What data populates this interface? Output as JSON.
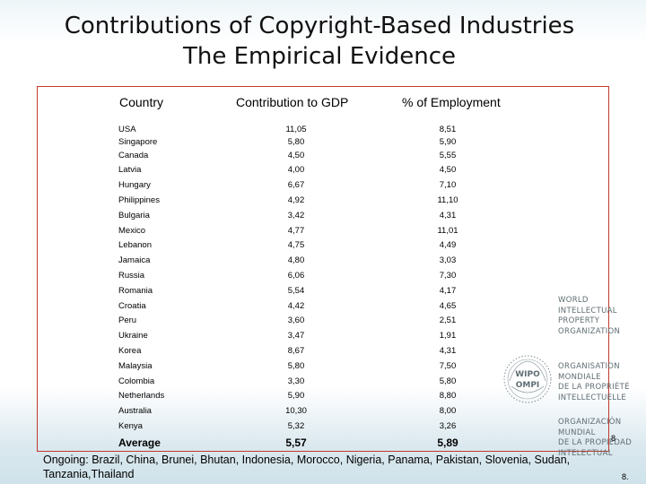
{
  "title": {
    "line1": "Contributions of Copyright-Based Industries",
    "line2": "The Empirical Evidence"
  },
  "table": {
    "headers": {
      "country": "Country",
      "gdp": "Contribution to GDP",
      "employment": "% of Employment"
    },
    "rows": [
      {
        "country": "USA",
        "gdp": "11,05",
        "employment": "8,51"
      },
      {
        "country": "Singapore",
        "gdp": "5,80",
        "employment": "5,90"
      },
      {
        "country": "Canada",
        "gdp": "4,50",
        "employment": "5,55"
      },
      {
        "country": "Latvia",
        "gdp": "4,00",
        "employment": "4,50"
      },
      {
        "country": "Hungary",
        "gdp": "6,67",
        "employment": "7,10"
      },
      {
        "country": "Philippines",
        "gdp": "4,92",
        "employment": "11,10"
      },
      {
        "country": "Bulgaria",
        "gdp": "3,42",
        "employment": "4,31"
      },
      {
        "country": "Mexico",
        "gdp": "4,77",
        "employment": "11,01"
      },
      {
        "country": "Lebanon",
        "gdp": "4,75",
        "employment": "4,49"
      },
      {
        "country": "Jamaica",
        "gdp": "4,80",
        "employment": "3,03"
      },
      {
        "country": "Russia",
        "gdp": "6,06",
        "employment": "7,30"
      },
      {
        "country": "Romania",
        "gdp": "5,54",
        "employment": "4,17"
      },
      {
        "country": "Croatia",
        "gdp": "4,42",
        "employment": "4,65"
      },
      {
        "country": "Peru",
        "gdp": "3,60",
        "employment": "2,51"
      },
      {
        "country": "Ukraine",
        "gdp": "3,47",
        "employment": "1,91"
      },
      {
        "country": "Korea",
        "gdp": "8,67",
        "employment": "4,31"
      },
      {
        "country": "Malaysia",
        "gdp": "5,80",
        "employment": "7,50"
      },
      {
        "country": "Colombia",
        "gdp": "3,30",
        "employment": "5,80"
      },
      {
        "country": "Netherlands",
        "gdp": "5,90",
        "employment": "8,80"
      },
      {
        "country": "Australia",
        "gdp": "10,30",
        "employment": "8,00"
      },
      {
        "country": "Kenya",
        "gdp": "5,32",
        "employment": "3,26"
      }
    ],
    "average": {
      "country": "Average",
      "gdp": "5,57",
      "employment": "5,89"
    }
  },
  "logo": {
    "english": [
      "WORLD",
      "INTELLECTUAL",
      "PROPERTY",
      "ORGANIZATION"
    ],
    "french": [
      "ORGANISATION",
      "MONDIALE",
      "DE LA PROPRIÉTÉ",
      "INTELLECTUELLE"
    ],
    "spanish": [
      "ORGANIZACIÓN",
      "MUNDIAL",
      "DE LA PROPIEDAD",
      "INTELECTUAL"
    ],
    "emblem": "WIPO OMPI"
  },
  "footnote": "Ongoing: Brazil, China, Brunei, Bhutan, Indonesia, Morocco, Nigeria, Panama, Pakistan, Slovenia, Sudan, Tanzania,Thailand",
  "page_number": "8",
  "page_number_corner": "8."
}
